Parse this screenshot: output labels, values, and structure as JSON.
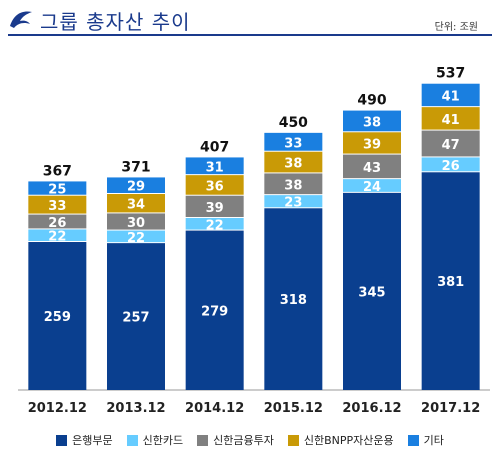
{
  "header": {
    "title": "그룹 총자산 추이",
    "unit": "단위: 조원"
  },
  "colors": {
    "bank": "#0a3f8f",
    "card": "#66ccff",
    "investment": "#808080",
    "bnpp": "#c99a06",
    "other": "#1a7fe0",
    "brand": "#1a3a8c"
  },
  "chart_data": {
    "type": "bar",
    "stacked": true,
    "categories": [
      "2012.12",
      "2013.12",
      "2014.12",
      "2015.12",
      "2016.12",
      "2017.12"
    ],
    "series": [
      {
        "name": "은행부문",
        "color_key": "bank",
        "values": [
          259,
          257,
          279,
          318,
          345,
          381
        ]
      },
      {
        "name": "신한카드",
        "color_key": "card",
        "values": [
          22,
          22,
          22,
          23,
          24,
          26
        ]
      },
      {
        "name": "신한금융투자",
        "color_key": "investment",
        "values": [
          26,
          30,
          39,
          38,
          43,
          47
        ]
      },
      {
        "name": "신한BNPP자산운용",
        "color_key": "bnpp",
        "values": [
          33,
          34,
          36,
          38,
          39,
          41
        ]
      },
      {
        "name": "기타",
        "color_key": "other",
        "values": [
          25,
          29,
          31,
          33,
          38,
          41
        ]
      }
    ],
    "totals": [
      367,
      371,
      407,
      450,
      490,
      537
    ],
    "ylim": [
      0,
      560
    ],
    "legend_position": "bottom",
    "grid": false
  }
}
